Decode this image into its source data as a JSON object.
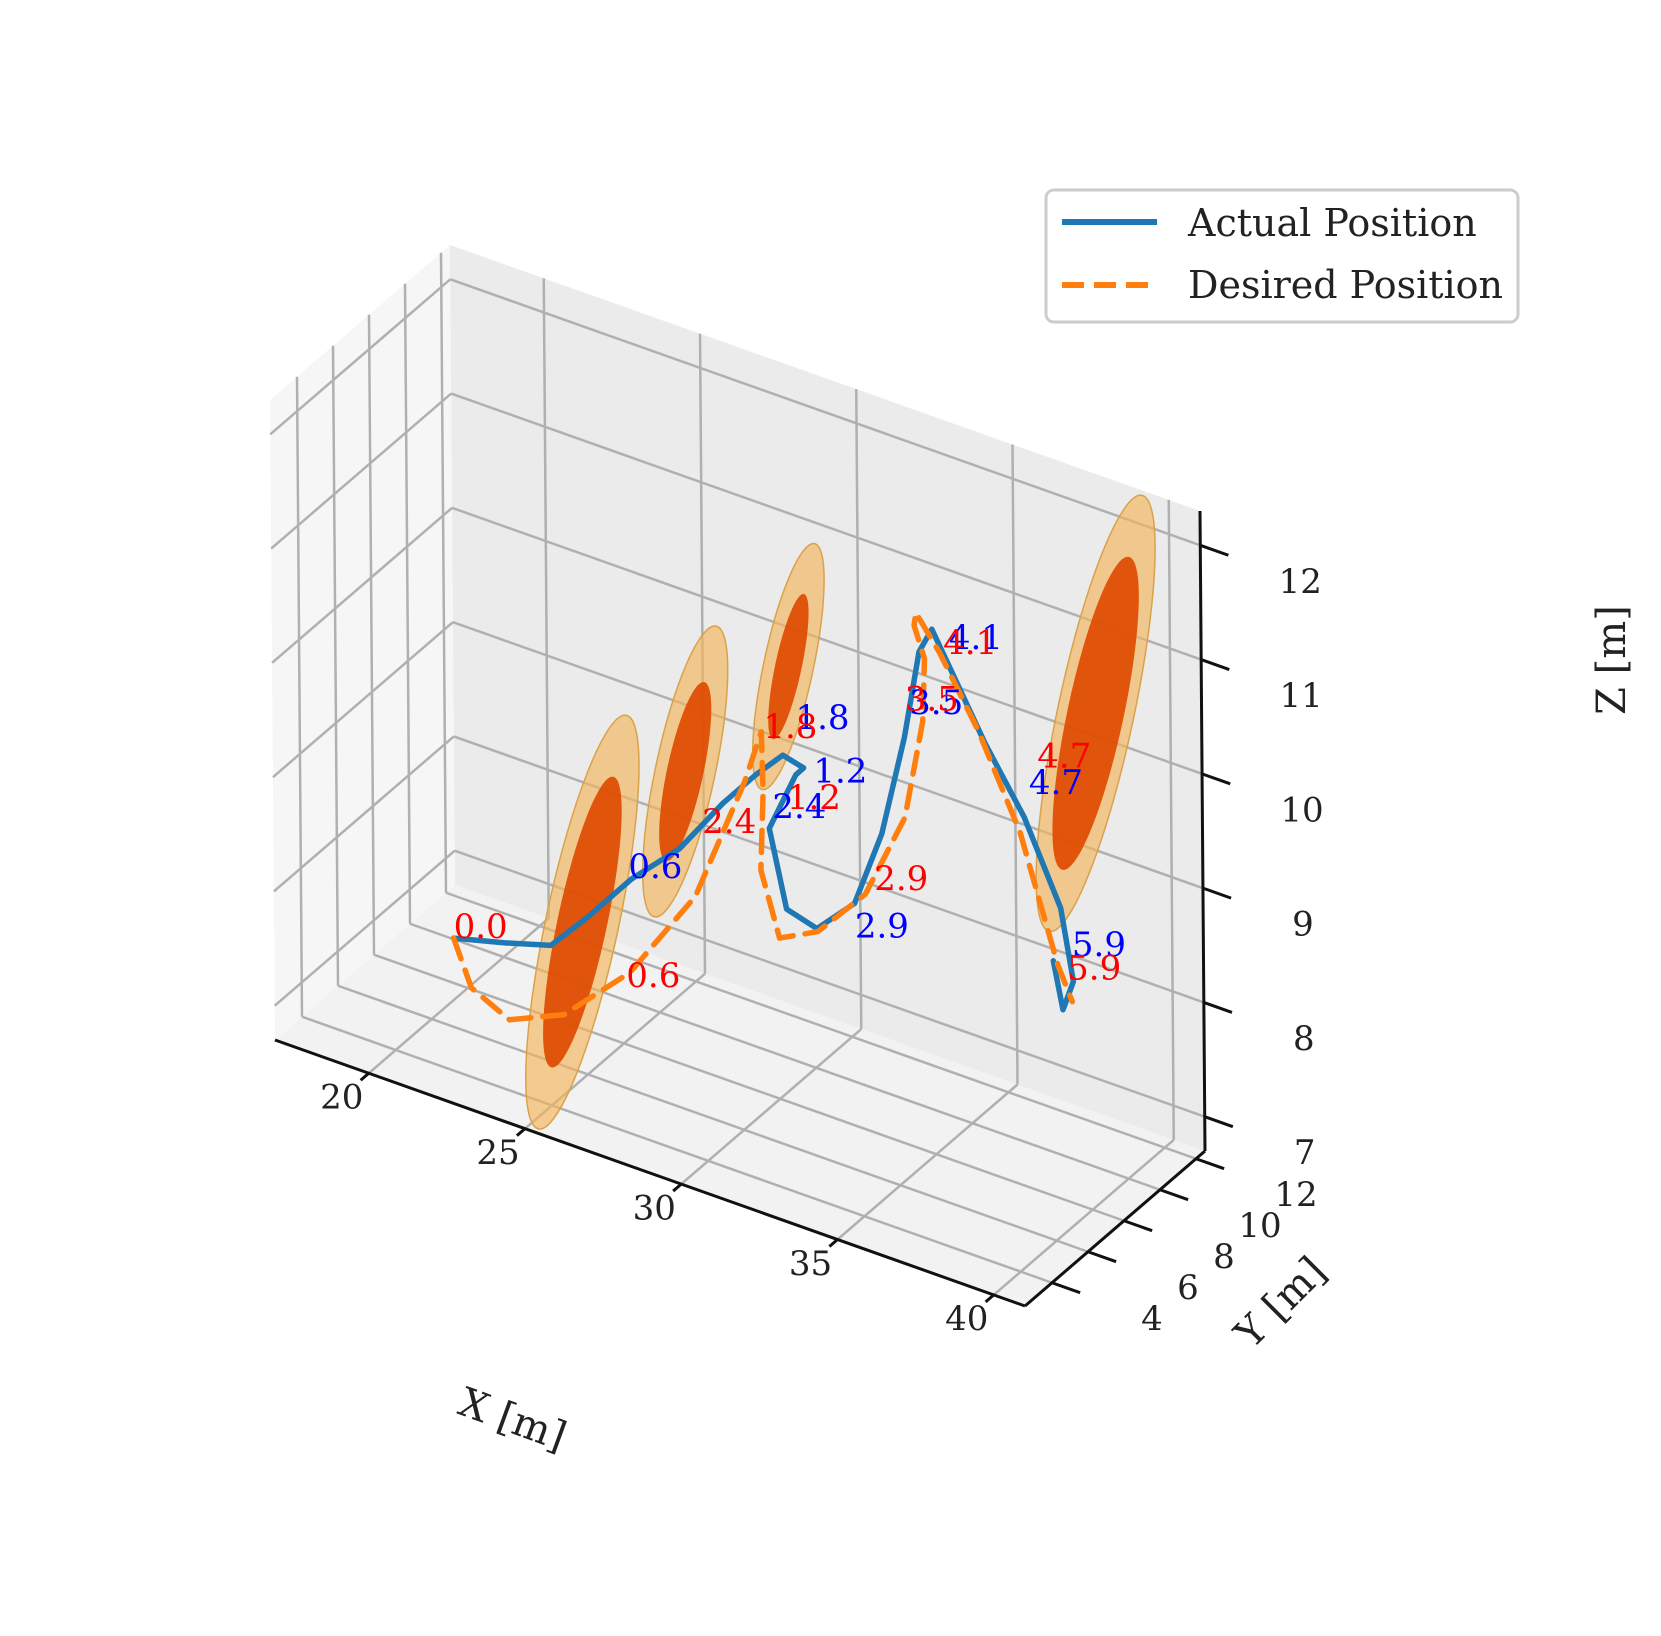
{
  "chart_data": {
    "type": "line",
    "projection": "3d",
    "xlabel": "X [m]",
    "ylabel": "Y [m]",
    "zlabel": "Z [m]",
    "xlim": [
      17,
      41
    ],
    "ylim": [
      2.5,
      12.5
    ],
    "zlim": [
      6.7,
      12.3
    ],
    "x_ticks": [
      20,
      25,
      30,
      35,
      40
    ],
    "y_ticks": [
      4,
      6,
      8,
      10,
      12
    ],
    "z_ticks": [
      7,
      8,
      9,
      10,
      11,
      12
    ],
    "grid": true,
    "legend_position": "top-right",
    "colors": {
      "actual": "#1f77b4",
      "desired": "#ff7f0e",
      "actual_label": "#0000ff",
      "desired_label": "#ff0000",
      "obstacle_core": "#e04a00",
      "obstacle_shell": "#f2b65a"
    },
    "series": [
      {
        "name": "Actual Position",
        "style": "solid",
        "x": [
          22.0,
          23.6,
          25.0,
          26.0,
          27.2,
          28.4,
          29.4,
          30.0,
          30.4,
          30.6,
          30.0,
          29.6,
          30.6,
          31.8,
          32.9,
          33.5,
          33.9,
          34.1,
          34.4,
          35.1,
          36.2,
          37.2,
          38.0,
          38.1,
          37.7,
          37.4
        ],
        "y": [
          3.8,
          3.9,
          4.0,
          4.3,
          4.7,
          5.3,
          6.0,
          6.8,
          7.6,
          8.4,
          9.0,
          8.2,
          7.4,
          7.0,
          7.2,
          7.7,
          8.3,
          8.8,
          9.0,
          8.9,
          8.8,
          9.2,
          9.8,
          10.3,
          10.4,
          10.4
        ],
        "z": [
          7.9,
          8.0,
          8.1,
          8.4,
          8.8,
          9.1,
          9.5,
          9.7,
          9.8,
          9.6,
          9.4,
          9.0,
          8.5,
          8.5,
          8.8,
          9.4,
          10.2,
          10.9,
          11.1,
          10.8,
          10.3,
          9.7,
          8.9,
          8.2,
          7.9,
          8.3
        ]
      },
      {
        "name": "Desired Position",
        "style": "dashed",
        "x": [
          22.0,
          22.5,
          23.6,
          25.0,
          26.6,
          28.2,
          29.3,
          29.6,
          29.7,
          29.9,
          30.6,
          31.6,
          32.9,
          33.9,
          34.2,
          34.1,
          33.6,
          33.6,
          34.3,
          35.4,
          36.6,
          37.6,
          38.0
        ],
        "y": [
          3.8,
          3.9,
          4.1,
          4.7,
          5.6,
          6.5,
          7.4,
          7.8,
          7.7,
          7.2,
          7.0,
          7.4,
          7.8,
          8.3,
          8.8,
          9.1,
          9.4,
          9.5,
          9.6,
          9.8,
          10.0,
          10.3,
          10.4
        ],
        "z": [
          7.9,
          7.5,
          7.3,
          7.4,
          7.8,
          8.5,
          9.5,
          9.9,
          9.4,
          8.8,
          8.3,
          8.4,
          8.8,
          9.5,
          10.3,
          10.8,
          11.0,
          11.1,
          10.8,
          10.2,
          9.4,
          8.3,
          8.0
        ]
      }
    ],
    "time_labels": [
      {
        "text": "0.0",
        "series": "Desired Position",
        "x": 22.0,
        "y": 3.8,
        "z": 7.9
      },
      {
        "text": "0.6",
        "series": "Actual Position",
        "x": 27.1,
        "y": 4.7,
        "z": 8.8
      },
      {
        "text": "0.6",
        "series": "Desired Position",
        "x": 26.6,
        "y": 5.4,
        "z": 7.7
      },
      {
        "text": "1.2",
        "series": "Actual Position",
        "x": 31.2,
        "y": 7.9,
        "z": 9.6
      },
      {
        "text": "1.2",
        "series": "Desired Position",
        "x": 30.4,
        "y": 7.8,
        "z": 9.3
      },
      {
        "text": "1.8",
        "series": "Actual Position",
        "x": 30.0,
        "y": 9.0,
        "z": 9.8
      },
      {
        "text": "1.8",
        "series": "Desired Position",
        "x": 29.2,
        "y": 8.6,
        "z": 9.7
      },
      {
        "text": "2.4",
        "series": "Actual Position",
        "x": 29.7,
        "y": 8.2,
        "z": 9.1
      },
      {
        "text": "2.4",
        "series": "Desired Position",
        "x": 28.2,
        "y": 6.9,
        "z": 9.0
      },
      {
        "text": "2.9",
        "series": "Actual Position",
        "x": 32.9,
        "y": 7.2,
        "z": 8.5
      },
      {
        "text": "2.9",
        "series": "Desired Position",
        "x": 33.3,
        "y": 7.6,
        "z": 8.9
      },
      {
        "text": "3.5",
        "series": "Actual Position",
        "x": 34.0,
        "y": 8.4,
        "z": 10.4
      },
      {
        "text": "3.5",
        "series": "Desired Position",
        "x": 33.8,
        "y": 8.5,
        "z": 10.4
      },
      {
        "text": "4.1",
        "series": "Actual Position",
        "x": 35.0,
        "y": 8.9,
        "z": 11.0
      },
      {
        "text": "4.1",
        "series": "Desired Position",
        "x": 34.7,
        "y": 9.1,
        "z": 10.9
      },
      {
        "text": "4.7",
        "series": "Actual Position",
        "x": 37.3,
        "y": 9.3,
        "z": 9.9
      },
      {
        "text": "4.7",
        "series": "Desired Position",
        "x": 37.4,
        "y": 9.6,
        "z": 10.1
      },
      {
        "text": "5.9",
        "series": "Actual Position",
        "x": 38.0,
        "y": 10.4,
        "z": 8.4
      },
      {
        "text": "5.9",
        "series": "Desired Position",
        "x": 37.9,
        "y": 10.3,
        "z": 8.2
      }
    ],
    "obstacles": [
      {
        "center": [
          24.8,
          6.1,
          8.0
        ],
        "core_radii": [
          0.75,
          0.75,
          1.3
        ],
        "shell_radii": [
          1.1,
          1.1,
          1.85
        ]
      },
      {
        "center": [
          26.8,
          8.4,
          9.2
        ],
        "core_radii": [
          0.55,
          0.55,
          0.8
        ],
        "shell_radii": [
          0.9,
          0.9,
          1.3
        ]
      },
      {
        "center": [
          28.8,
          10.7,
          10.0
        ],
        "core_radii": [
          0.4,
          0.4,
          0.65
        ],
        "shell_radii": [
          0.75,
          0.75,
          1.1
        ]
      },
      {
        "center": [
          37.6,
          12.5,
          10.2
        ],
        "core_radii": [
          0.85,
          0.85,
          1.4
        ],
        "shell_radii": [
          1.15,
          1.15,
          1.95
        ]
      }
    ],
    "legend": [
      {
        "label": "Actual Position",
        "style": "solid"
      },
      {
        "label": "Desired Position",
        "style": "dashed"
      }
    ]
  }
}
